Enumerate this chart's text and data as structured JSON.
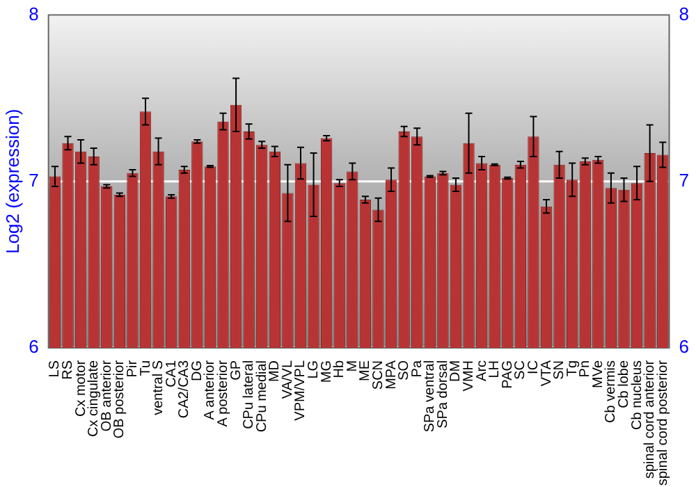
{
  "chart_data": {
    "type": "bar",
    "ylabel": "Log2 (expression)",
    "categories": [
      "LS",
      "RS",
      "Cx motor",
      "Cx cingulate",
      "OB anterior",
      "OB posterior",
      "Pir",
      "Tu",
      "ventral S",
      "CA1",
      "CA2/CA3",
      "DG",
      "A anterior",
      "A posterior",
      "GP",
      "CPu lateral",
      "CPu medial",
      "MD",
      "VA/VL",
      "VPM/VPL",
      "LG",
      "MG",
      "Hb",
      "M",
      "ME",
      "SCN",
      "MPA",
      "SO",
      "Pa",
      "SPa ventral",
      "SPa dorsal",
      "DM",
      "VMH",
      "Arc",
      "LH",
      "PAG",
      "SC",
      "IC",
      "VTA",
      "SN",
      "Tg",
      "Pn",
      "MVe",
      "Cb vermis",
      "Cb lobe",
      "Cb nucleus",
      "spinal cord anterior",
      "spinal cord posterior"
    ],
    "values": [
      7.03,
      7.23,
      7.18,
      7.15,
      6.97,
      6.92,
      7.05,
      7.42,
      7.18,
      6.91,
      7.07,
      7.24,
      7.09,
      7.36,
      7.46,
      7.3,
      7.22,
      7.18,
      6.93,
      7.11,
      6.98,
      7.26,
      6.99,
      7.06,
      6.89,
      6.83,
      7.01,
      7.3,
      7.27,
      7.03,
      7.05,
      6.98,
      7.23,
      7.11,
      7.1,
      7.02,
      7.1,
      7.27,
      6.85,
      7.1,
      7.01,
      7.12,
      7.13,
      6.96,
      6.95,
      6.99,
      7.17,
      7.16
    ],
    "errors": [
      0.06,
      0.04,
      0.07,
      0.05,
      0.01,
      0.01,
      0.02,
      0.08,
      0.08,
      0.01,
      0.02,
      0.01,
      0.005,
      0.05,
      0.16,
      0.045,
      0.02,
      0.03,
      0.17,
      0.095,
      0.19,
      0.015,
      0.02,
      0.05,
      0.02,
      0.07,
      0.07,
      0.03,
      0.05,
      0.005,
      0.01,
      0.04,
      0.18,
      0.04,
      0.005,
      0.005,
      0.02,
      0.12,
      0.04,
      0.08,
      0.1,
      0.02,
      0.02,
      0.09,
      0.07,
      0.1,
      0.17,
      0.075
    ],
    "color": "#b83434",
    "ylim": [
      6,
      8
    ],
    "yticks": [
      6,
      7,
      8
    ],
    "y2lim": [
      6,
      8
    ],
    "y2ticks": [
      6,
      7,
      8
    ],
    "grid": "y",
    "legend": false
  }
}
